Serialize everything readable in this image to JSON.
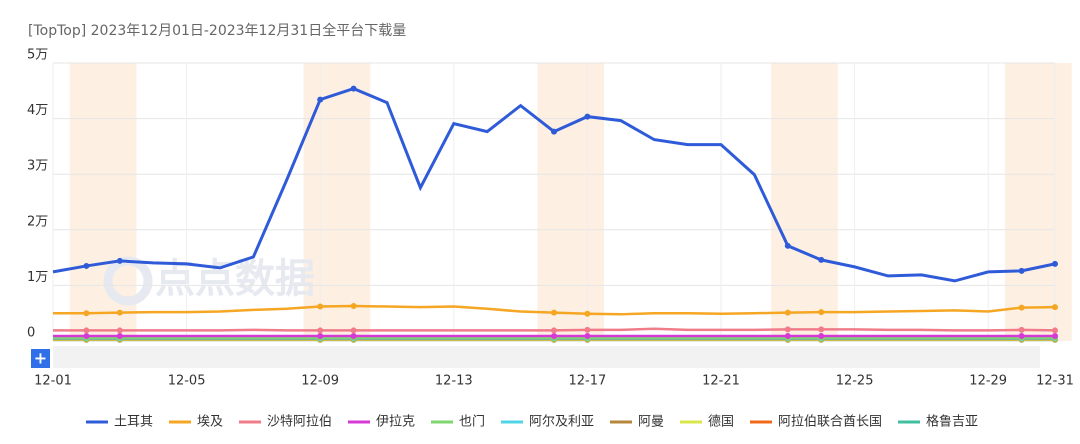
{
  "chart_data": {
    "type": "line",
    "title": "[TopTop]  2023年12月01日-2023年12月31日全平台下载量",
    "watermark": "点点数据",
    "button": "+",
    "categories": [
      "12-01",
      null,
      null,
      null,
      "12-05",
      null,
      null,
      null,
      "12-09",
      null,
      null,
      null,
      "12-13",
      null,
      null,
      null,
      "12-17",
      null,
      null,
      null,
      "12-21",
      null,
      null,
      null,
      "12-25",
      null,
      null,
      null,
      "12-29",
      null,
      "12-31"
    ],
    "ylim": [
      0,
      50000
    ],
    "yticks": [
      0,
      {
        "value": 10000,
        "label": "1万"
      },
      {
        "value": 20000,
        "label": "2万"
      },
      {
        "value": 30000,
        "label": "3万"
      },
      {
        "value": 40000,
        "label": "4万"
      },
      {
        "value": 50000,
        "label": "5万"
      }
    ],
    "grid": true,
    "legend": "bottom",
    "series": [
      {
        "name": "土耳其",
        "color": "#2f5bd9",
        "values": [
          12430,
          13500,
          14400,
          14050,
          13870,
          13150,
          15130,
          29000,
          43420,
          45400,
          42880,
          27570,
          39100,
          37660,
          42340,
          37660,
          40360,
          39640,
          36220,
          35320,
          35320,
          29910,
          17120,
          14590,
          13330,
          11710,
          11890,
          10810,
          12430,
          12610,
          13870
        ]
      },
      {
        "name": "埃及",
        "color": "#f5a623",
        "values": [
          5000,
          5000,
          5100,
          5200,
          5200,
          5300,
          5600,
          5800,
          6200,
          6300,
          6200,
          6100,
          6200,
          5800,
          5300,
          5100,
          4900,
          4800,
          5000,
          5000,
          4900,
          5000,
          5100,
          5200,
          5200,
          5300,
          5400,
          5500,
          5300,
          6000,
          6100
        ]
      },
      {
        "name": "沙特阿拉伯",
        "color": "#f07c8a",
        "values": [
          1900,
          1900,
          1900,
          1900,
          1900,
          1900,
          2000,
          1900,
          1900,
          1900,
          1900,
          1900,
          1900,
          1900,
          1900,
          1900,
          2000,
          2000,
          2200,
          2000,
          2000,
          2000,
          2100,
          2100,
          2100,
          2000,
          2000,
          1900,
          1900,
          2000,
          1900
        ]
      },
      {
        "name": "伊拉克",
        "color": "#d63ad6",
        "values": [
          900,
          900,
          900,
          900,
          900,
          900,
          900,
          900,
          900,
          900,
          900,
          900,
          900,
          900,
          900,
          900,
          900,
          900,
          900,
          900,
          900,
          900,
          900,
          900,
          900,
          900,
          900,
          900,
          900,
          900,
          900
        ]
      },
      {
        "name": "也门",
        "color": "#7ed66f",
        "values": [
          600,
          600,
          600,
          600,
          600,
          600,
          600,
          600,
          600,
          600,
          600,
          600,
          600,
          600,
          600,
          600,
          600,
          600,
          600,
          600,
          600,
          600,
          600,
          600,
          600,
          600,
          600,
          600,
          600,
          600,
          600
        ]
      },
      {
        "name": "阿尔及利亚",
        "color": "#4fd4e6",
        "values": [
          500,
          500,
          500,
          500,
          500,
          500,
          500,
          500,
          500,
          500,
          500,
          500,
          500,
          500,
          500,
          500,
          500,
          500,
          500,
          500,
          500,
          500,
          500,
          500,
          500,
          500,
          500,
          500,
          500,
          500,
          500
        ]
      },
      {
        "name": "阿曼",
        "color": "#b5873a",
        "values": [
          400,
          400,
          400,
          400,
          400,
          400,
          400,
          400,
          400,
          400,
          400,
          400,
          400,
          400,
          400,
          400,
          400,
          400,
          400,
          400,
          400,
          400,
          400,
          400,
          400,
          400,
          400,
          400,
          400,
          400,
          400
        ]
      },
      {
        "name": "德国",
        "color": "#d8e64a",
        "values": [
          300,
          300,
          300,
          300,
          300,
          300,
          300,
          300,
          300,
          300,
          300,
          300,
          300,
          300,
          300,
          300,
          300,
          300,
          300,
          300,
          300,
          300,
          300,
          300,
          300,
          300,
          300,
          300,
          300,
          300,
          300
        ]
      },
      {
        "name": "阿拉伯联合酋长国",
        "color": "#f2681a",
        "values": [
          250,
          250,
          250,
          250,
          250,
          250,
          250,
          250,
          250,
          250,
          250,
          250,
          250,
          250,
          250,
          250,
          250,
          250,
          250,
          250,
          250,
          250,
          250,
          250,
          250,
          250,
          250,
          250,
          250,
          250,
          250
        ]
      },
      {
        "name": "格鲁吉亚",
        "color": "#3fbf9f",
        "values": [
          200,
          200,
          200,
          200,
          200,
          200,
          200,
          200,
          200,
          200,
          200,
          200,
          200,
          200,
          200,
          200,
          200,
          200,
          200,
          200,
          200,
          200,
          200,
          200,
          200,
          200,
          200,
          200,
          200,
          200,
          200
        ]
      }
    ]
  }
}
